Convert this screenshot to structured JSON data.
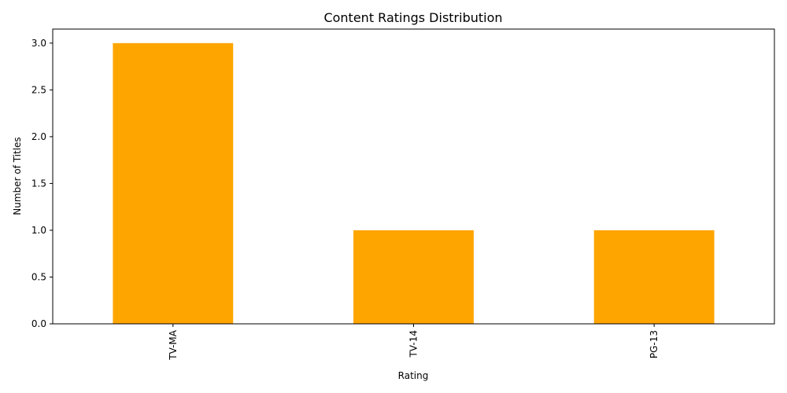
{
  "chart_data": {
    "type": "bar",
    "title": "Content Ratings Distribution",
    "xlabel": "Rating",
    "ylabel": "Number of Titles",
    "categories": [
      "TV-MA",
      "TV-14",
      "PG-13"
    ],
    "values": [
      3,
      1,
      1
    ],
    "ylim": [
      0,
      3.15
    ],
    "yticks": [
      "0.0",
      "0.5",
      "1.0",
      "1.5",
      "2.0",
      "2.5",
      "3.0"
    ],
    "ytick_values": [
      0,
      0.5,
      1.0,
      1.5,
      2.0,
      2.5,
      3.0
    ],
    "bar_color": "#FFA500",
    "grid": false,
    "legend": "none",
    "xtick_rotation": "vertical"
  }
}
